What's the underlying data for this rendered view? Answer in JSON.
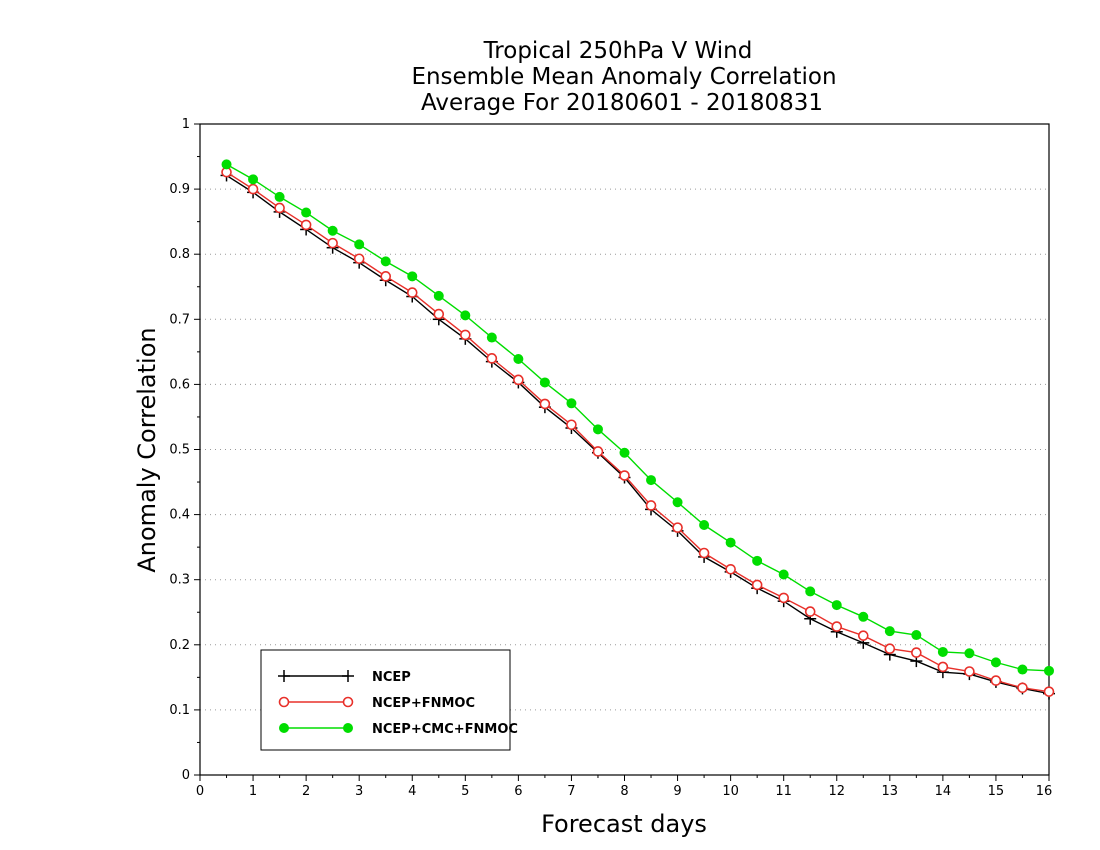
{
  "chart_data": {
    "type": "line",
    "title": [
      "Tropical 250hPa V Wind",
      "Ensemble Mean Anomaly Correlation",
      "Average For 20180601 - 20180831"
    ],
    "xlabel": "Forecast days",
    "ylabel": "Anomaly Correlation",
    "xlim": [
      0,
      16
    ],
    "ylim": [
      0,
      1
    ],
    "x_ticks": [
      0,
      1,
      2,
      3,
      4,
      5,
      6,
      7,
      8,
      9,
      10,
      11,
      12,
      13,
      14,
      15,
      16
    ],
    "y_ticks": [
      0,
      0.1,
      0.2,
      0.3,
      0.4,
      0.5,
      0.6,
      0.7,
      0.8,
      0.9,
      1
    ],
    "y_tick_labels": [
      "0",
      "0.1",
      "0.2",
      "0.3",
      "0.4",
      "0.5",
      "0.6",
      "0.7",
      "0.8",
      "0.9",
      "1"
    ],
    "grid": "horizontal dotted",
    "legend_position": "bottom-left",
    "x": [
      0.5,
      1,
      1.5,
      2,
      2.5,
      3,
      3.5,
      4,
      4.5,
      5,
      5.5,
      6,
      6.5,
      7,
      7.5,
      8,
      8.5,
      9,
      9.5,
      10,
      10.5,
      11,
      11.5,
      12,
      12.5,
      13,
      13.5,
      14,
      14.5,
      15,
      15.5,
      16
    ],
    "series": [
      {
        "name": "NCEP",
        "color": "#000000",
        "marker": "plus",
        "values": [
          0.921,
          0.895,
          0.865,
          0.838,
          0.81,
          0.787,
          0.76,
          0.735,
          0.7,
          0.67,
          0.635,
          0.603,
          0.565,
          0.533,
          0.495,
          0.457,
          0.408,
          0.375,
          0.335,
          0.312,
          0.287,
          0.267,
          0.24,
          0.22,
          0.203,
          0.185,
          0.175,
          0.158,
          0.155,
          0.143,
          0.133,
          0.125
        ]
      },
      {
        "name": "NCEP+FNMOC",
        "color": "#e8302a",
        "marker": "open-circle",
        "values": [
          0.926,
          0.9,
          0.871,
          0.845,
          0.817,
          0.793,
          0.766,
          0.741,
          0.708,
          0.676,
          0.64,
          0.607,
          0.57,
          0.538,
          0.497,
          0.46,
          0.414,
          0.38,
          0.341,
          0.316,
          0.292,
          0.272,
          0.251,
          0.228,
          0.214,
          0.194,
          0.188,
          0.166,
          0.159,
          0.145,
          0.134,
          0.128
        ]
      },
      {
        "name": "NCEP+CMC+FNMOC",
        "color": "#00dd00",
        "marker": "filled-circle",
        "values": [
          0.938,
          0.915,
          0.888,
          0.864,
          0.836,
          0.815,
          0.789,
          0.766,
          0.736,
          0.706,
          0.672,
          0.639,
          0.603,
          0.571,
          0.531,
          0.495,
          0.453,
          0.419,
          0.384,
          0.357,
          0.329,
          0.308,
          0.282,
          0.261,
          0.243,
          0.221,
          0.215,
          0.189,
          0.187,
          0.173,
          0.162,
          0.16
        ]
      }
    ]
  }
}
